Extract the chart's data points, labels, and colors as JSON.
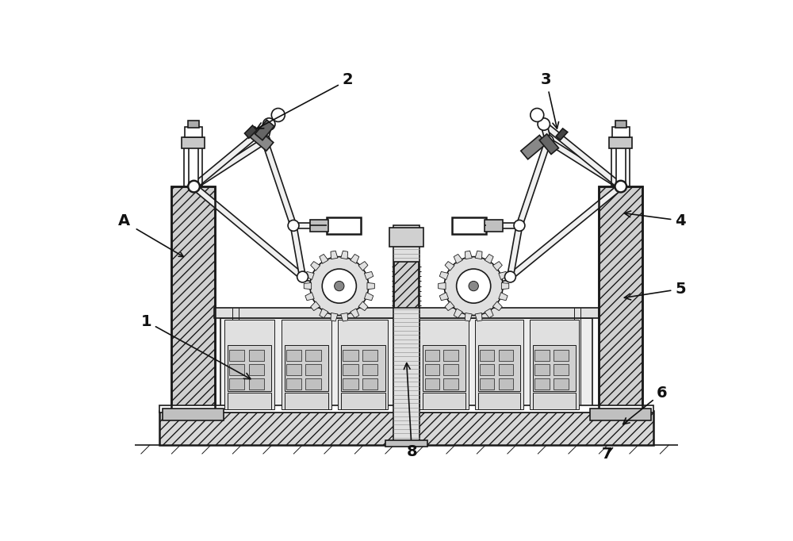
{
  "bg_color": "#ffffff",
  "lc": "#1a1a1a",
  "figsize": [
    10.0,
    6.82
  ],
  "dpi": 100,
  "hatch_gray": "#d0d0d0",
  "light_gray": "#e8e8e8",
  "mid_gray": "#c0c0c0",
  "dark_gray": "#888888"
}
